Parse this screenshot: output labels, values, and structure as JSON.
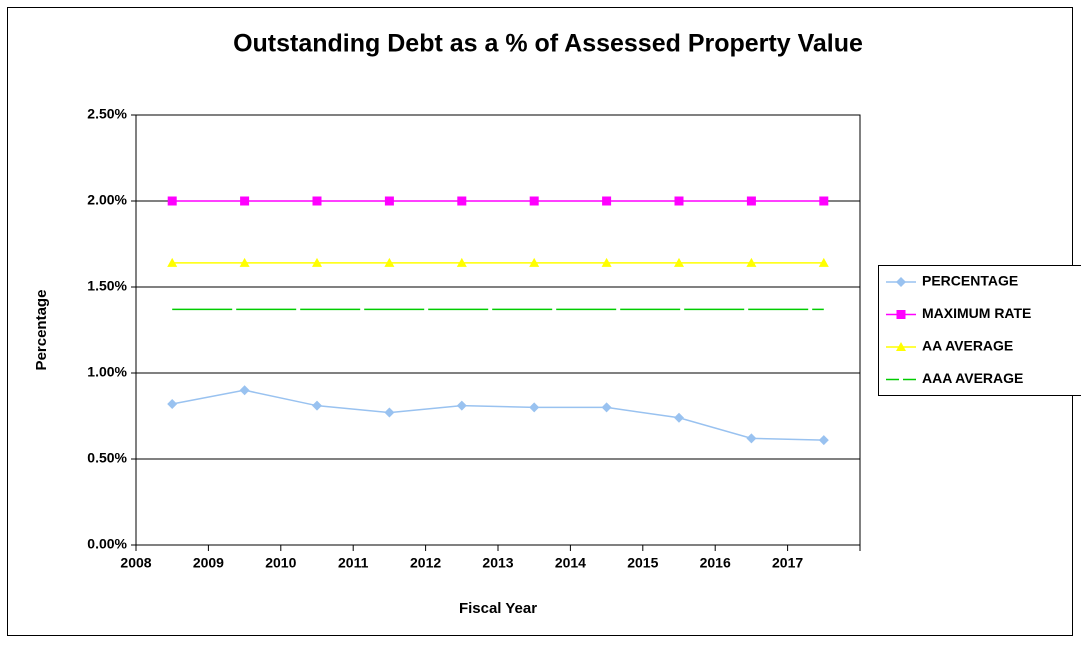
{
  "chart_data": {
    "type": "line",
    "title": "Outstanding Debt as a % of Assessed Property Value",
    "x_label": "Fiscal Year",
    "y_label": "Percentage",
    "categories": [
      "2008",
      "2009",
      "2010",
      "2011",
      "2012",
      "2013",
      "2014",
      "2015",
      "2016",
      "2017"
    ],
    "series": [
      {
        "name": "PERCENTAGE",
        "color": "#99c2f0",
        "marker": "diamond",
        "dashed": false,
        "values": [
          0.82,
          0.9,
          0.81,
          0.77,
          0.81,
          0.8,
          0.8,
          0.74,
          0.62,
          0.61
        ]
      },
      {
        "name": "MAXIMUM RATE",
        "color": "#ff00ff",
        "marker": "square",
        "dashed": false,
        "values": [
          2.0,
          2.0,
          2.0,
          2.0,
          2.0,
          2.0,
          2.0,
          2.0,
          2.0,
          2.0
        ]
      },
      {
        "name": "AA AVERAGE",
        "color": "#ffff00",
        "marker": "triangle",
        "dashed": false,
        "values": [
          1.64,
          1.64,
          1.64,
          1.64,
          1.64,
          1.64,
          1.64,
          1.64,
          1.64,
          1.64
        ]
      },
      {
        "name": "AAA AVERAGE",
        "color": "#00cc00",
        "marker": "none",
        "dashed": true,
        "values": [
          1.37,
          1.37,
          1.37,
          1.37,
          1.37,
          1.37,
          1.37,
          1.37,
          1.37,
          1.37
        ]
      }
    ],
    "ylim": [
      0,
      2.5
    ],
    "yticks": [
      {
        "value": 0,
        "label": "0.00%"
      },
      {
        "value": 0.5,
        "label": "0.50%"
      },
      {
        "value": 1.0,
        "label": "1.00%"
      },
      {
        "value": 1.5,
        "label": "1.50%"
      },
      {
        "value": 2.0,
        "label": "2.00%"
      },
      {
        "value": 2.5,
        "label": "2.50%"
      }
    ],
    "grid": true,
    "legend": "right"
  }
}
